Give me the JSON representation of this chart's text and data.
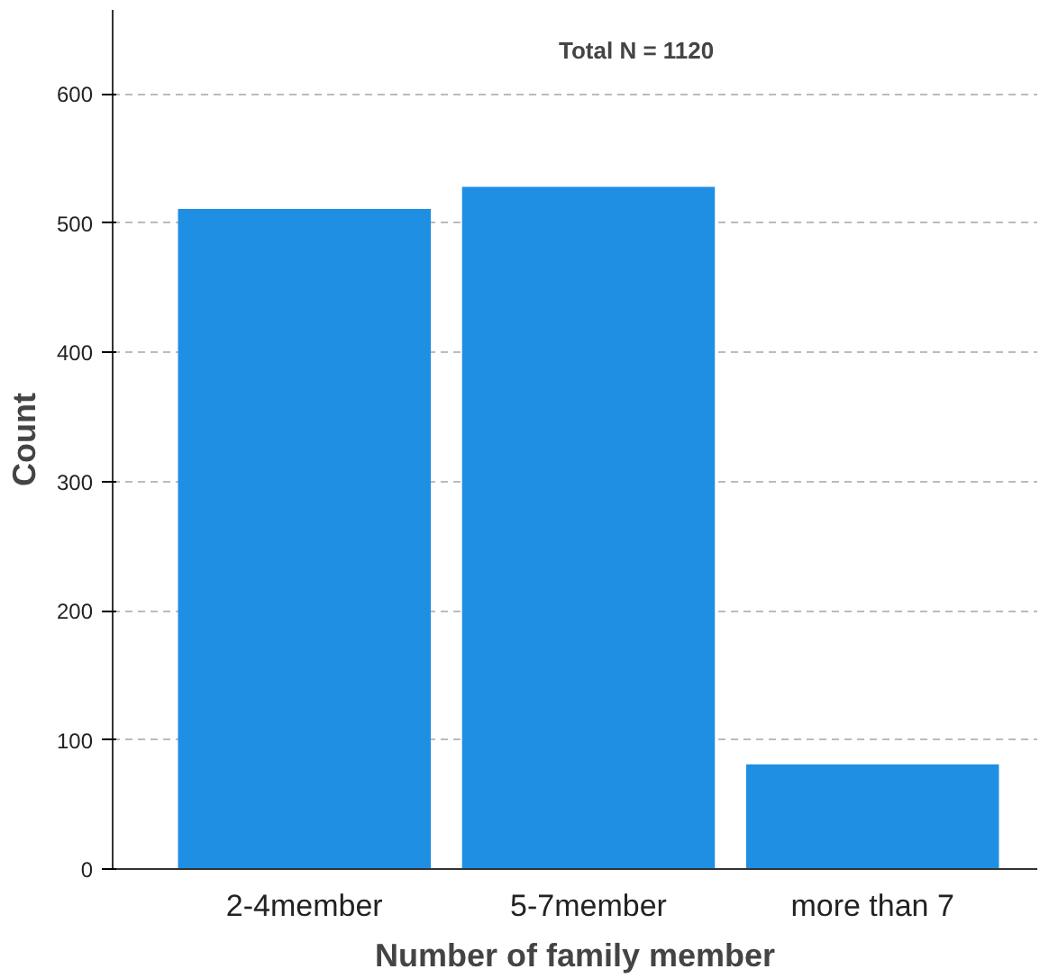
{
  "chart_data": {
    "type": "bar",
    "xlabel": "Number of family member",
    "ylabel": "Count",
    "categories": [
      "2-4member",
      "5-7member",
      "more than 7"
    ],
    "values": [
      511,
      528,
      81
    ],
    "color": "#1f8fe3",
    "ylim": [
      0,
      665
    ],
    "yticks": [
      0,
      100,
      200,
      300,
      400,
      500,
      600
    ],
    "grid": "y",
    "annotations": [
      "Total N =  1120"
    ]
  }
}
